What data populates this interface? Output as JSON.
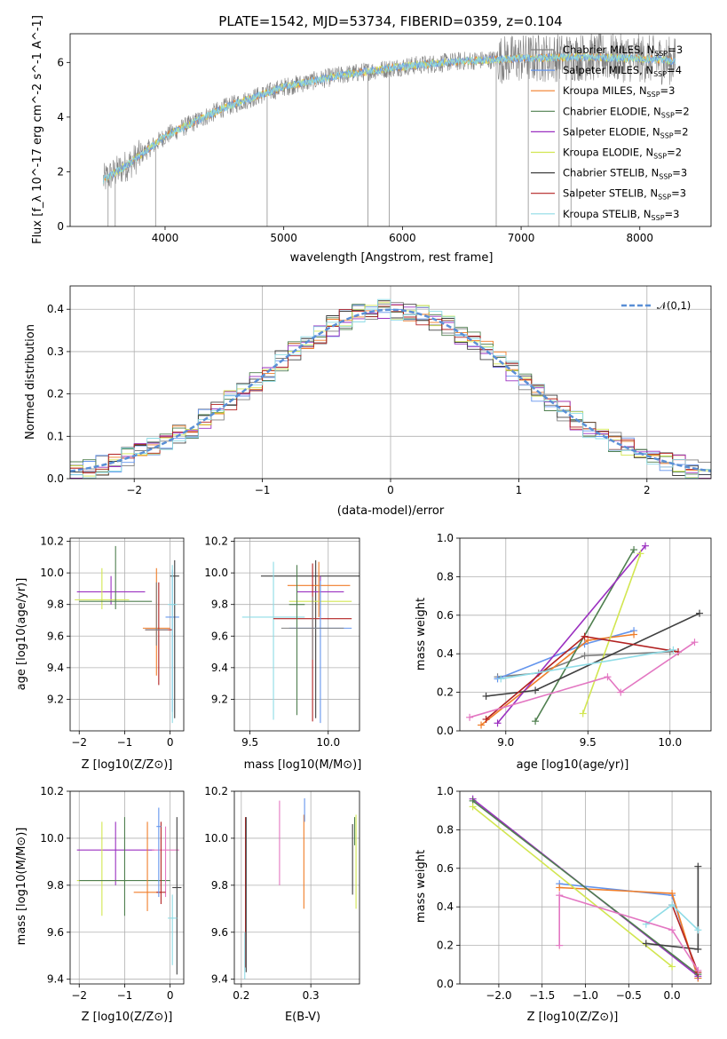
{
  "figure": {
    "title": "PLATE=1542, MJD=53734, FIBERID=0359, z=0.104"
  },
  "models": [
    {
      "label": "Chabrier MILES, N",
      "sub": "SSP",
      "suffix": "=3",
      "color": "#7f7f7f"
    },
    {
      "label": "Salpeter MILES, N",
      "sub": "SSP",
      "suffix": "=4",
      "color": "#6495ed"
    },
    {
      "label": "Kroupa MILES, N",
      "sub": "SSP",
      "suffix": "=3",
      "color": "#f07d28"
    },
    {
      "label": "Chabrier ELODIE, N",
      "sub": "SSP",
      "suffix": "=2",
      "color": "#4f7f4f"
    },
    {
      "label": "Salpeter ELODIE, N",
      "sub": "SSP",
      "suffix": "=2",
      "color": "#9b30c0"
    },
    {
      "label": "Kroupa ELODIE, N",
      "sub": "SSP",
      "suffix": "=2",
      "color": "#d2e650"
    },
    {
      "label": "Chabrier STELIB, N",
      "sub": "SSP",
      "suffix": "=3",
      "color": "#404040"
    },
    {
      "label": "Salpeter STELIB, N",
      "sub": "SSP",
      "suffix": "=3",
      "color": "#b22222"
    },
    {
      "label": "Kroupa STELIB, N",
      "sub": "SSP",
      "suffix": "=3",
      "color": "#8fdce6"
    }
  ],
  "chart_data": [
    {
      "id": "spectrum",
      "type": "line",
      "xlabel": "wavelength [Angstrom, rest frame]",
      "ylabel": "Flux [f_λ 10^-17 erg cm^-2 s^-1 A^-1]",
      "xlim": [
        3200,
        8600
      ],
      "ylim": [
        0,
        7.05
      ],
      "xticks": [
        4000,
        5000,
        6000,
        7000,
        8000
      ],
      "yticks": [
        0,
        2,
        4,
        6
      ],
      "continuum": {
        "x": [
          3480,
          3700,
          4000,
          4500,
          5000,
          5500,
          6000,
          6500,
          7000,
          7500,
          8000,
          8300
        ],
        "y": [
          1.7,
          2.3,
          3.3,
          4.35,
          5.1,
          5.55,
          5.85,
          6.05,
          6.15,
          6.2,
          6.15,
          6.05
        ]
      },
      "grid": false,
      "legend": "right"
    },
    {
      "id": "residuals",
      "type": "line",
      "xlabel": "(data-model)/error",
      "ylabel": "Normed distribution",
      "xlim": [
        -2.5,
        2.5
      ],
      "ylim": [
        0,
        0.455
      ],
      "xticks": [
        -2,
        -1,
        0,
        1,
        2
      ],
      "yticks": [
        0.0,
        0.1,
        0.2,
        0.3,
        0.4
      ],
      "reference_curve": "𝒩(0,1)",
      "grid": true,
      "legend": "top-right"
    },
    {
      "id": "age-vs-Z",
      "type": "scatter",
      "xlabel": "Z [log10(Z/Z⊙)]",
      "ylabel": "age  [log10(age/yr)]",
      "xlim": [
        -2.2,
        0.3
      ],
      "ylim": [
        9.0,
        10.22
      ],
      "xticks": [
        -2,
        -1,
        0
      ],
      "yticks": [
        9.2,
        9.4,
        9.6,
        9.8,
        10.0,
        10.2
      ],
      "points": [
        {
          "model": 4,
          "x": -1.3,
          "xerr": 0.75,
          "y": 9.88,
          "yerr": [
            0.08,
            0.1
          ]
        },
        {
          "model": 5,
          "x": -1.5,
          "xerr": 0.6,
          "y": 9.83,
          "yerr": [
            0.06,
            0.2
          ]
        },
        {
          "model": 3,
          "x": -1.2,
          "xerr": 0.8,
          "y": 9.82,
          "yerr": [
            0.05,
            0.35
          ]
        },
        {
          "model": 2,
          "x": -0.3,
          "xerr": 0.3,
          "y": 9.65,
          "yerr": [
            0.3,
            0.38
          ]
        },
        {
          "model": 7,
          "x": -0.25,
          "xerr": 0.3,
          "y": 9.64,
          "yerr": [
            0.35,
            0.3
          ]
        },
        {
          "model": 0,
          "x": -0.3,
          "xerr": 0.25,
          "y": 9.64,
          "yerr": [
            0.1,
            0.3
          ]
        },
        {
          "model": 1,
          "x": 0.05,
          "xerr": 0.15,
          "y": 9.72,
          "yerr": [
            0.6,
            0.3
          ]
        },
        {
          "model": 6,
          "x": 0.1,
          "xerr": 0.1,
          "y": 9.98,
          "yerr": [
            0.9,
            0.1
          ]
        },
        {
          "model": 8,
          "x": 0.05,
          "xerr": 0.1,
          "y": 9.8,
          "yerr": [
            0.75,
            0.25
          ]
        }
      ],
      "grid": true
    },
    {
      "id": "age-vs-mass",
      "type": "scatter",
      "xlabel": "mass [log10(M/M⊙)]",
      "ylabel": "",
      "xlim": [
        9.4,
        10.2
      ],
      "ylim": [
        9.0,
        10.22
      ],
      "xticks": [
        9.5,
        10.0
      ],
      "yticks": [
        9.2,
        9.4,
        9.6,
        9.8,
        10.0,
        10.2
      ],
      "points": [
        {
          "model": 6,
          "x": 9.92,
          "xerr": 0.35,
          "y": 9.98,
          "yerr": [
            0.9,
            0.1
          ]
        },
        {
          "model": 4,
          "x": 9.95,
          "xerr": 0.15,
          "y": 9.88,
          "yerr": [
            0.15,
            0.1
          ]
        },
        {
          "model": 2,
          "x": 9.94,
          "xerr": 0.2,
          "y": 9.92,
          "yerr": [
            0.2,
            0.15
          ]
        },
        {
          "model": 5,
          "x": 9.95,
          "xerr": 0.2,
          "y": 9.82,
          "yerr": [
            0.05,
            0.1
          ]
        },
        {
          "model": 8,
          "x": 9.65,
          "xerr": 0.2,
          "y": 9.72,
          "yerr": [
            0.65,
            0.35
          ]
        },
        {
          "model": 7,
          "x": 9.9,
          "xerr": 0.25,
          "y": 9.71,
          "yerr": [
            0.65,
            0.35
          ]
        },
        {
          "model": 1,
          "x": 9.95,
          "xerr": 0.2,
          "y": 9.65,
          "yerr": [
            0.6,
            0.3
          ]
        },
        {
          "model": 3,
          "x": 9.8,
          "xerr": 0.05,
          "y": 9.8,
          "yerr": [
            0.7,
            0.25
          ]
        },
        {
          "model": 0,
          "x": 9.9,
          "xerr": 0.2,
          "y": 9.65,
          "yerr": [
            0.2,
            0.2
          ]
        }
      ],
      "grid": true
    },
    {
      "id": "weight-vs-age",
      "type": "line",
      "xlabel": "age  [log10(age/yr)]",
      "ylabel": "mass weight",
      "xlim": [
        8.72,
        10.25
      ],
      "ylim": [
        0,
        1
      ],
      "xticks": [
        9.0,
        9.5,
        10.0
      ],
      "yticks": [
        0.0,
        0.2,
        0.4,
        0.6,
        0.8,
        1.0
      ],
      "series": [
        {
          "model": 0,
          "x": [
            8.95,
            9.2,
            9.48,
            10.0
          ],
          "y": [
            0.28,
            0.3,
            0.39,
            0.41
          ]
        },
        {
          "model": 1,
          "x": [
            8.95,
            9.48,
            9.78
          ],
          "y": [
            0.27,
            0.45,
            0.52
          ]
        },
        {
          "model": 2,
          "x": [
            8.85,
            9.5,
            9.78
          ],
          "y": [
            0.03,
            0.47,
            0.5
          ]
        },
        {
          "model": 3,
          "x": [
            9.18,
            9.78
          ],
          "y": [
            0.05,
            0.94
          ]
        },
        {
          "model": 4,
          "x": [
            8.95,
            9.85
          ],
          "y": [
            0.04,
            0.96
          ]
        },
        {
          "model": 5,
          "x": [
            9.47,
            9.82
          ],
          "y": [
            0.09,
            0.92
          ]
        },
        {
          "model": 6,
          "x": [
            8.88,
            9.18,
            10.18
          ],
          "y": [
            0.18,
            0.21,
            0.61
          ]
        },
        {
          "model": 7,
          "x": [
            8.88,
            9.48,
            10.05
          ],
          "y": [
            0.06,
            0.49,
            0.41
          ]
        },
        {
          "model": 8,
          "x": [
            8.97,
            10.02
          ],
          "y": [
            0.27,
            0.42
          ]
        },
        {
          "model": 9,
          "x": [
            8.78,
            9.62,
            9.7,
            10.15
          ],
          "y": [
            0.07,
            0.28,
            0.2,
            0.46
          ],
          "color": "#e377c2"
        }
      ],
      "grid": true
    },
    {
      "id": "mass-vs-Z",
      "type": "scatter",
      "xlabel": "Z [log10(Z/Z⊙)]",
      "ylabel": "mass [log10(M/M⊙)]",
      "xlim": [
        -2.2,
        0.3
      ],
      "ylim": [
        9.38,
        10.2
      ],
      "xticks": [
        -2,
        -1,
        0
      ],
      "yticks": [
        9.4,
        9.6,
        9.8,
        10.0,
        10.2
      ],
      "points": [
        {
          "model": 4,
          "x": -1.2,
          "xerr": 0.85,
          "y": 9.95,
          "yerr": [
            0.15,
            0.12
          ]
        },
        {
          "model": 5,
          "x": -1.5,
          "xerr": 0.55,
          "y": 9.82,
          "yerr": [
            0.15,
            0.25
          ]
        },
        {
          "model": 3,
          "x": -1.0,
          "xerr": 1.0,
          "y": 9.82,
          "yerr": [
            0.15,
            0.27
          ]
        },
        {
          "model": 2,
          "x": -0.5,
          "xerr": 0.3,
          "y": 9.77,
          "yerr": [
            0.08,
            0.3
          ]
        },
        {
          "model": 9,
          "x": -0.1,
          "xerr": 0.3,
          "y": 9.95,
          "yerr": [
            0.2,
            0.1
          ],
          "color": "#e377c2"
        },
        {
          "model": 7,
          "x": -0.2,
          "xerr": 0.1,
          "y": 9.77,
          "yerr": [
            0.05,
            0.3
          ]
        },
        {
          "model": 1,
          "x": -0.25,
          "xerr": 0.05,
          "y": 10.05,
          "yerr": [
            0.3,
            0.08
          ]
        },
        {
          "model": 6,
          "x": 0.15,
          "xerr": 0.1,
          "y": 9.79,
          "yerr": [
            0.37,
            0.3
          ]
        },
        {
          "model": 8,
          "x": 0.05,
          "xerr": 0.1,
          "y": 9.66,
          "yerr": [
            0.2,
            0.1
          ]
        }
      ],
      "grid": true
    },
    {
      "id": "mass-vs-EBV",
      "type": "scatter",
      "xlabel": "E(B-V)",
      "ylabel": "",
      "xlim": [
        0.19,
        0.37
      ],
      "ylim": [
        9.38,
        10.2
      ],
      "xticks": [
        0.2,
        0.3
      ],
      "yticks": [
        9.4,
        9.6,
        9.8,
        10.0,
        10.2
      ],
      "points": [
        {
          "model": 7,
          "x": 0.206,
          "y": 9.85,
          "yerr": [
            0.4,
            0.24
          ]
        },
        {
          "model": 6,
          "x": 0.207,
          "y": 9.85,
          "yerr": [
            0.42,
            0.24
          ]
        },
        {
          "model": 8,
          "x": 0.205,
          "y": 9.5,
          "yerr": [
            0.1,
            0.1
          ]
        },
        {
          "model": 9,
          "x": 0.255,
          "y": 9.98,
          "yerr": [
            0.18,
            0.18
          ],
          "color": "#e377c2"
        },
        {
          "model": 2,
          "x": 0.29,
          "y": 9.9,
          "yerr": [
            0.2,
            0.2
          ]
        },
        {
          "model": 1,
          "x": 0.291,
          "y": 10.12,
          "yerr": [
            0.05,
            0.05
          ]
        },
        {
          "model": 6,
          "x": 0.36,
          "y": 9.91,
          "yerr": [
            0.15,
            0.15
          ]
        },
        {
          "model": 5,
          "x": 0.365,
          "y": 9.9,
          "yerr": [
            0.2,
            0.2
          ]
        },
        {
          "model": 3,
          "x": 0.363,
          "y": 10.02,
          "yerr": [
            0.05,
            0.07
          ]
        }
      ],
      "grid": true
    },
    {
      "id": "weight-vs-Z",
      "type": "line",
      "xlabel": "Z [log10(Z/Z⊙)]",
      "ylabel": "mass weight",
      "xlim": [
        -2.45,
        0.45
      ],
      "ylim": [
        0,
        1
      ],
      "xticks": [
        -2.0,
        -1.5,
        -1.0,
        -0.5,
        0.0
      ],
      "yticks": [
        0.0,
        0.2,
        0.4,
        0.6,
        0.8,
        1.0
      ],
      "series": [
        {
          "model": 1,
          "x": [
            -1.3,
            0.0,
            0.3
          ],
          "y": [
            0.52,
            0.46,
            0.03
          ]
        },
        {
          "model": 2,
          "x": [
            -1.3,
            0.0,
            0.3
          ],
          "y": [
            0.5,
            0.47,
            0.03
          ]
        },
        {
          "model": 4,
          "x": [
            -2.3,
            0.3
          ],
          "y": [
            0.96,
            0.04
          ]
        },
        {
          "model": 3,
          "x": [
            -2.3,
            0.3
          ],
          "y": [
            0.95,
            0.05
          ]
        },
        {
          "model": 5,
          "x": [
            -2.3,
            0.0
          ],
          "y": [
            0.92,
            0.09
          ]
        },
        {
          "model": 6,
          "x": [
            -0.3,
            0.3,
            0.3
          ],
          "y": [
            0.21,
            0.18,
            0.61
          ]
        },
        {
          "model": 7,
          "x": [
            0.0,
            0.3
          ],
          "y": [
            0.41,
            0.06
          ]
        },
        {
          "model": 8,
          "x": [
            -0.3,
            0.0,
            0.3
          ],
          "y": [
            0.31,
            0.41,
            0.28
          ]
        },
        {
          "model": 9,
          "x": [
            -1.3,
            -1.3,
            0.0,
            0.3
          ],
          "y": [
            0.2,
            0.46,
            0.28,
            0.07
          ],
          "color": "#e377c2"
        }
      ],
      "grid": true
    }
  ]
}
